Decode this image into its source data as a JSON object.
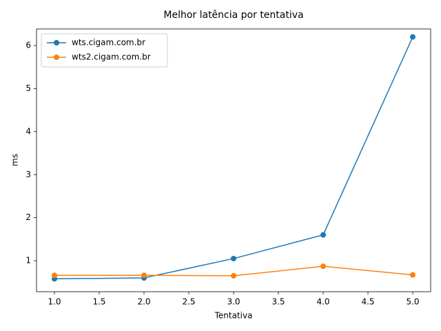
{
  "chart_data": {
    "type": "line",
    "title": "Melhor latência por tentativa",
    "xlabel": "Tentativa",
    "ylabel": "ms",
    "x": [
      1,
      2,
      3,
      4,
      5
    ],
    "series": [
      {
        "name": "wts.cigam.com.br",
        "color": "#1f77b4",
        "values": [
          0.58,
          0.6,
          1.05,
          1.6,
          6.2
        ]
      },
      {
        "name": "wts2.cigam.com.br",
        "color": "#ff7f0e",
        "values": [
          0.66,
          0.66,
          0.65,
          0.87,
          0.67
        ]
      }
    ],
    "xlim": [
      0.8,
      5.2
    ],
    "ylim": [
      0.28,
      6.385
    ],
    "xticks": [
      {
        "value": 1,
        "label": "1.0"
      },
      {
        "value": 1.5,
        "label": "1.5"
      },
      {
        "value": 2,
        "label": "2.0"
      },
      {
        "value": 2.5,
        "label": "2.5"
      },
      {
        "value": 3,
        "label": "3.0"
      },
      {
        "value": 3.5,
        "label": "3.5"
      },
      {
        "value": 4,
        "label": "4.0"
      },
      {
        "value": 4.5,
        "label": "4.5"
      },
      {
        "value": 5,
        "label": "5.0"
      }
    ],
    "yticks": [
      1,
      2,
      3,
      4,
      5,
      6
    ],
    "grid": false,
    "legend": "upper-left",
    "markers": true
  }
}
